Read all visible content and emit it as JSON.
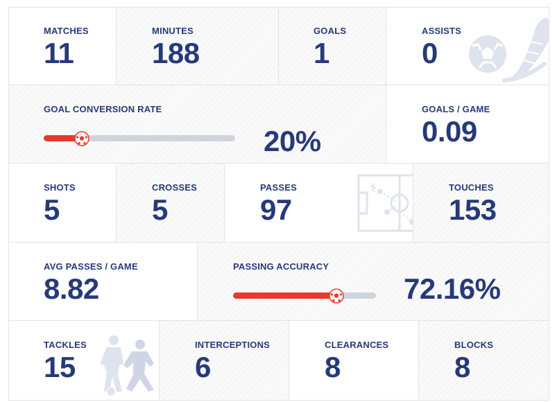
{
  "rows": {
    "row1": {
      "matches": {
        "label": "MATCHES",
        "value": "11"
      },
      "minutes": {
        "label": "MINUTES",
        "value": "188"
      },
      "goals": {
        "label": "GOALS",
        "value": "1"
      },
      "assists": {
        "label": "ASSISTS",
        "value": "0"
      }
    },
    "row2": {
      "goal_conversion": {
        "label": "GOAL CONVERSION RATE",
        "value": "20%",
        "fraction": 0.2
      },
      "goals_per_game": {
        "label": "GOALS / GAME",
        "value": "0.09"
      }
    },
    "row3": {
      "shots": {
        "label": "SHOTS",
        "value": "5"
      },
      "crosses": {
        "label": "CROSSES",
        "value": "5"
      },
      "passes": {
        "label": "PASSES",
        "value": "97"
      },
      "touches": {
        "label": "TOUCHES",
        "value": "153"
      }
    },
    "row4": {
      "avg_passes": {
        "label": "AVG PASSES / GAME",
        "value": "8.82"
      },
      "passing_accuracy": {
        "label": "PASSING ACCURACY",
        "value": "72.16%",
        "fraction": 0.7216
      }
    },
    "row5": {
      "tackles": {
        "label": "TACKLES",
        "value": "15"
      },
      "interceptions": {
        "label": "INTERCEPTIONS",
        "value": "6"
      },
      "clearances": {
        "label": "CLEARANCES",
        "value": "8"
      },
      "blocks": {
        "label": "BLOCKS",
        "value": "8"
      }
    }
  },
  "colors": {
    "text": "#26397a",
    "bar_fill": "#e8392d",
    "bar_track": "#cfd4dd",
    "decoration": "#dfe3ee"
  },
  "icons": {
    "ball_boot": "football-and-boot-icon",
    "pitch": "pitch-tactics-icon",
    "players": "tackling-players-icon",
    "knob": "football-icon"
  }
}
